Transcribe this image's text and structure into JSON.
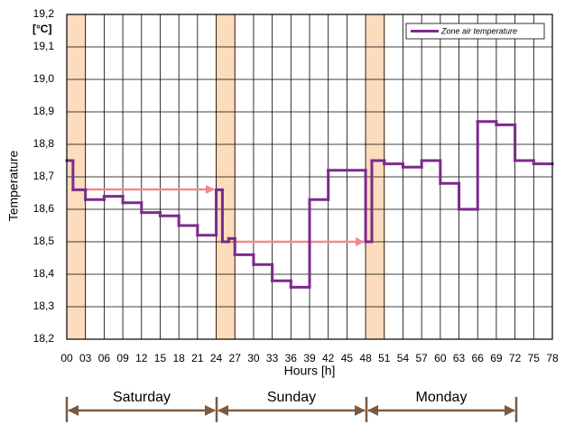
{
  "chart_data": {
    "type": "step",
    "y_label": "Temperature",
    "y_unit": "[°C]",
    "x_label": "Hours [h]",
    "x": [
      0,
      1,
      3,
      6,
      9,
      12,
      15,
      18,
      21,
      24,
      25,
      26,
      27,
      30,
      33,
      36,
      39,
      42,
      48,
      49,
      51,
      54,
      57,
      60,
      63,
      66,
      69,
      72,
      75
    ],
    "series": [
      {
        "name": "Zone air temperature",
        "color": "#7b2a8c",
        "values": [
          18.75,
          18.66,
          18.63,
          18.64,
          18.62,
          18.59,
          18.58,
          18.55,
          18.52,
          18.66,
          18.5,
          18.51,
          18.46,
          18.43,
          18.38,
          18.36,
          18.63,
          18.72,
          18.5,
          18.75,
          18.74,
          18.73,
          18.75,
          18.68,
          18.6,
          18.87,
          18.86,
          18.75,
          18.74
        ]
      }
    ],
    "xlim": [
      0,
      78
    ],
    "ylim": [
      18.2,
      19.2
    ],
    "xticks": [
      {
        "value": 0,
        "label": "00"
      },
      {
        "value": 3,
        "label": "03"
      },
      {
        "value": 6,
        "label": "06"
      },
      {
        "value": 9,
        "label": "09"
      },
      12,
      15,
      18,
      21,
      24,
      27,
      30,
      33,
      36,
      39,
      42,
      45,
      48,
      51,
      54,
      57,
      60,
      63,
      66,
      69,
      72,
      75,
      78
    ],
    "yticks": [
      {
        "value": 18.2,
        "label": "18,2"
      },
      {
        "value": 18.3,
        "label": "18,3"
      },
      {
        "value": 18.4,
        "label": "18,4"
      },
      {
        "value": 18.5,
        "label": "18,5"
      },
      {
        "value": 18.6,
        "label": "18,6"
      },
      {
        "value": 18.7,
        "label": "18,7"
      },
      {
        "value": 18.8,
        "label": "18,8"
      },
      {
        "value": 18.9,
        "label": "18,9"
      },
      {
        "value": 19.0,
        "label": "19,0"
      },
      {
        "value": 19.1,
        "label": "19,1"
      },
      {
        "value": 19.2,
        "label": "19,2"
      }
    ],
    "highlight_bands": [
      [
        0,
        3
      ],
      [
        24,
        27
      ],
      [
        48,
        51
      ]
    ],
    "band_color": "#fcdcbc",
    "grid": true,
    "legend": "upper right",
    "day_labels": [
      "Saturday",
      "Sunday",
      "Monday"
    ]
  }
}
